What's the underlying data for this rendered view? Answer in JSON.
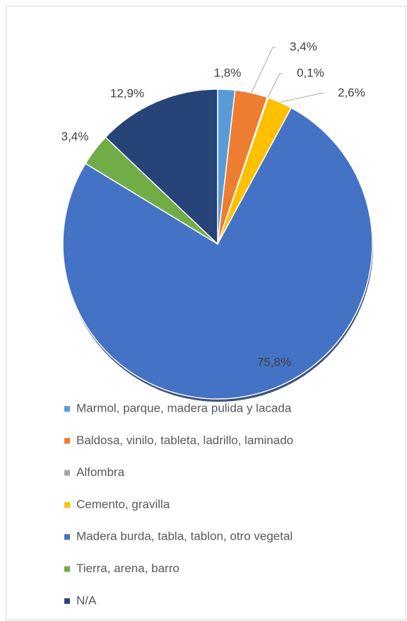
{
  "chart_data": {
    "type": "pie",
    "categories": [
      "Marmol, parque, madera pulida y lacada",
      "Baldosa, vinilo, tableta, ladrillo, laminado",
      "Alfombra",
      "Cemento, gravilla",
      "Madera burda, tabla, tablon, otro vegetal",
      "Tierra, arena, barro",
      "N/A"
    ],
    "values": [
      1.8,
      3.4,
      0.1,
      2.6,
      75.8,
      3.4,
      12.9
    ],
    "value_labels": [
      "1,8%",
      "3,4%",
      "0,1%",
      "2,6%",
      "75,8%",
      "3,4%",
      "12,9%"
    ],
    "colors": [
      "#5b9bd5",
      "#ed7d31",
      "#a5a5a5",
      "#ffc000",
      "#4472c4",
      "#70ad47",
      "#264478"
    ],
    "legend": "bottom"
  }
}
